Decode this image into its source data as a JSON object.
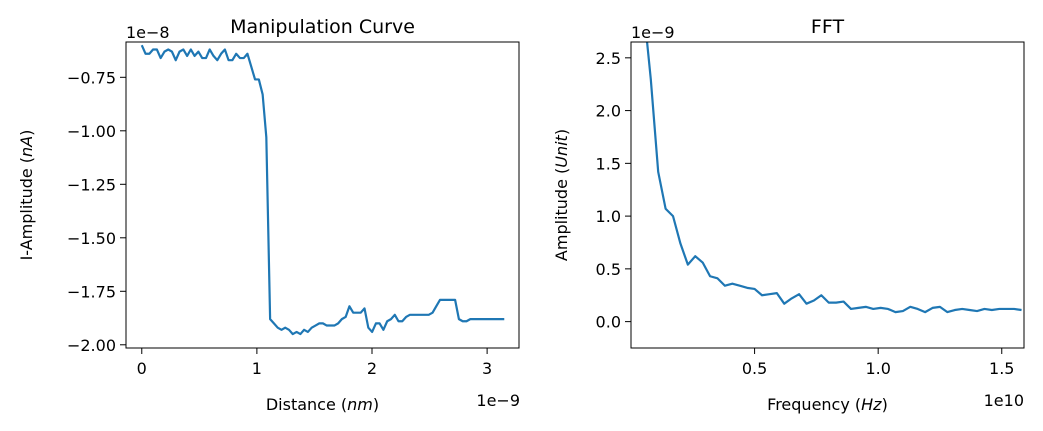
{
  "chart_data": [
    {
      "type": "line",
      "title": "Manipulation Curve",
      "xlabel": "Distance (",
      "xlabel_italic": "nm",
      "xlabel_close": ")",
      "ylabel": "I-Amplitude (",
      "ylabel_italic": "nA",
      "ylabel_close": ")",
      "x_offset_text": "1e−9",
      "y_offset_text": "1e−8",
      "xlim": [
        -0.137,
        3.277
      ],
      "ylim": [
        -2.015,
        -0.585
      ],
      "xticks": [
        0,
        1,
        2,
        3
      ],
      "xtick_labels": [
        "0",
        "1",
        "2",
        "3"
      ],
      "yticks": [
        -0.75,
        -1.0,
        -1.25,
        -1.5,
        -1.75,
        -2.0
      ],
      "ytick_labels": [
        "−0.75",
        "−1.00",
        "−1.25",
        "−1.50",
        "−1.75",
        "−2.00"
      ],
      "grid": false,
      "series": [
        {
          "color": "#1f77b4",
          "x": [
            0.0,
            0.033,
            0.066,
            0.098,
            0.131,
            0.164,
            0.197,
            0.23,
            0.262,
            0.295,
            0.328,
            0.361,
            0.394,
            0.426,
            0.459,
            0.492,
            0.525,
            0.558,
            0.59,
            0.623,
            0.656,
            0.689,
            0.722,
            0.754,
            0.787,
            0.82,
            0.853,
            0.886,
            0.918,
            0.951,
            0.984,
            1.017,
            1.05,
            1.082,
            1.115,
            1.148,
            1.181,
            1.214,
            1.246,
            1.279,
            1.312,
            1.345,
            1.378,
            1.41,
            1.443,
            1.476,
            1.509,
            1.542,
            1.574,
            1.607,
            1.64,
            1.673,
            1.706,
            1.738,
            1.771,
            1.804,
            1.837,
            1.87,
            1.902,
            1.935,
            1.968,
            2.001,
            2.034,
            2.066,
            2.099,
            2.132,
            2.165,
            2.198,
            2.23,
            2.263,
            2.296,
            2.329,
            2.362,
            2.394,
            2.427,
            2.46,
            2.493,
            2.526,
            2.558,
            2.591,
            2.624,
            2.657,
            2.69,
            2.722,
            2.755,
            2.788,
            2.821,
            2.854,
            2.886,
            2.919,
            2.952,
            2.985,
            3.018,
            3.05,
            3.083,
            3.116,
            3.149
          ],
          "y": [
            -0.6,
            -0.64,
            -0.64,
            -0.62,
            -0.62,
            -0.66,
            -0.63,
            -0.62,
            -0.63,
            -0.67,
            -0.63,
            -0.62,
            -0.65,
            -0.62,
            -0.65,
            -0.63,
            -0.66,
            -0.66,
            -0.62,
            -0.65,
            -0.67,
            -0.64,
            -0.62,
            -0.67,
            -0.67,
            -0.64,
            -0.66,
            -0.66,
            -0.64,
            -0.7,
            -0.76,
            -0.76,
            -0.83,
            -1.03,
            -1.88,
            -1.9,
            -1.92,
            -1.93,
            -1.92,
            -1.93,
            -1.95,
            -1.94,
            -1.95,
            -1.93,
            -1.94,
            -1.92,
            -1.91,
            -1.9,
            -1.9,
            -1.91,
            -1.91,
            -1.91,
            -1.9,
            -1.88,
            -1.87,
            -1.82,
            -1.85,
            -1.85,
            -1.85,
            -1.83,
            -1.92,
            -1.94,
            -1.9,
            -1.9,
            -1.93,
            -1.89,
            -1.88,
            -1.86,
            -1.89,
            -1.89,
            -1.87,
            -1.86,
            -1.86,
            -1.86,
            -1.86,
            -1.86,
            -1.86,
            -1.85,
            -1.82,
            -1.79,
            -1.79,
            -1.79,
            -1.79,
            -1.79,
            -1.88,
            -1.89,
            -1.89,
            -1.88,
            -1.88,
            -1.88,
            -1.88,
            -1.88,
            -1.88,
            -1.88,
            -1.88,
            -1.88,
            -1.88
          ]
        }
      ]
    },
    {
      "type": "line",
      "title": "FFT",
      "xlabel": "Frequency (",
      "xlabel_italic": "Hz",
      "xlabel_close": ")",
      "ylabel": "Amplitude (",
      "ylabel_italic": "Unit",
      "ylabel_close": ")",
      "x_offset_text": "1e10",
      "y_offset_text": "1e−9",
      "xlim": [
        0.0,
        1.59
      ],
      "ylim": [
        -0.25,
        2.65
      ],
      "xticks": [
        0.5,
        1.0,
        1.5
      ],
      "xtick_labels": [
        "0.5",
        "1.0",
        "1.5"
      ],
      "yticks": [
        0.0,
        0.5,
        1.0,
        1.5,
        2.0,
        2.5
      ],
      "ytick_labels": [
        "0.0",
        "0.5",
        "1.0",
        "1.5",
        "2.0",
        "2.5"
      ],
      "grid": false,
      "series": [
        {
          "color": "#1f77b4",
          "x": [
            0.05,
            0.08,
            0.11,
            0.14,
            0.17,
            0.2,
            0.23,
            0.26,
            0.29,
            0.32,
            0.35,
            0.38,
            0.41,
            0.44,
            0.47,
            0.5,
            0.53,
            0.56,
            0.59,
            0.62,
            0.65,
            0.68,
            0.71,
            0.74,
            0.77,
            0.8,
            0.83,
            0.86,
            0.89,
            0.92,
            0.95,
            0.98,
            1.01,
            1.04,
            1.07,
            1.1,
            1.13,
            1.16,
            1.19,
            1.22,
            1.25,
            1.28,
            1.31,
            1.34,
            1.37,
            1.4,
            1.43,
            1.46,
            1.49,
            1.52,
            1.55,
            1.58
          ],
          "y": [
            3.0,
            2.3,
            1.42,
            1.07,
            1.0,
            0.74,
            0.54,
            0.62,
            0.56,
            0.43,
            0.41,
            0.34,
            0.36,
            0.34,
            0.32,
            0.31,
            0.25,
            0.26,
            0.27,
            0.17,
            0.22,
            0.26,
            0.17,
            0.2,
            0.25,
            0.18,
            0.18,
            0.19,
            0.12,
            0.13,
            0.14,
            0.12,
            0.13,
            0.12,
            0.09,
            0.1,
            0.14,
            0.12,
            0.09,
            0.13,
            0.14,
            0.09,
            0.11,
            0.12,
            0.11,
            0.1,
            0.12,
            0.11,
            0.12,
            0.12,
            0.12,
            0.11
          ]
        }
      ]
    }
  ]
}
